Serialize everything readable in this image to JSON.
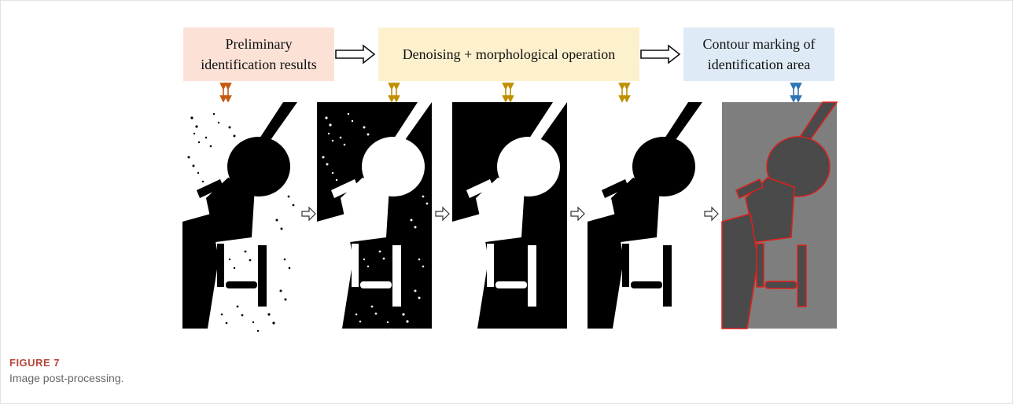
{
  "figure": {
    "steps": [
      {
        "lines": [
          "Preliminary",
          "identification results"
        ]
      },
      {
        "lines": [
          "Denoising + morphological operation"
        ]
      },
      {
        "lines": [
          "Contour marking of",
          "identification area"
        ]
      }
    ],
    "label": "FIGURE 7",
    "caption": "Image post-processing."
  }
}
